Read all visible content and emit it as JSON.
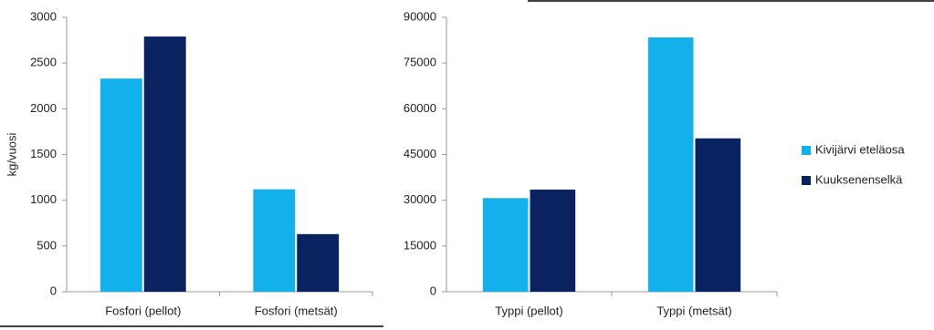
{
  "chart_data": [
    {
      "type": "bar",
      "y_label": "kg/vuosi",
      "categories": [
        "Fosfori (pellot)",
        "Fosfori (metsät)"
      ],
      "series": [
        {
          "name": "Kivijärvi eteläosa",
          "color": "#12b1ec",
          "values": [
            2330,
            1120
          ]
        },
        {
          "name": "Kuuksenenselkä",
          "color": "#0b2261",
          "values": [
            2790,
            630
          ]
        }
      ],
      "ylim": [
        0,
        3000
      ],
      "yticks": [
        0,
        500,
        1000,
        1500,
        2000,
        2500,
        3000
      ]
    },
    {
      "type": "bar",
      "categories": [
        "Typpi (pellot)",
        "Typpi (metsät)"
      ],
      "series": [
        {
          "name": "Kivijärvi eteläosa",
          "color": "#12b1ec",
          "values": [
            30700,
            83400
          ]
        },
        {
          "name": "Kuuksenenselkä",
          "color": "#0b2261",
          "values": [
            33500,
            50300
          ]
        }
      ],
      "ylim": [
        0,
        90000
      ],
      "yticks": [
        0,
        15000,
        30000,
        45000,
        60000,
        75000,
        90000
      ],
      "legend": "right"
    }
  ]
}
